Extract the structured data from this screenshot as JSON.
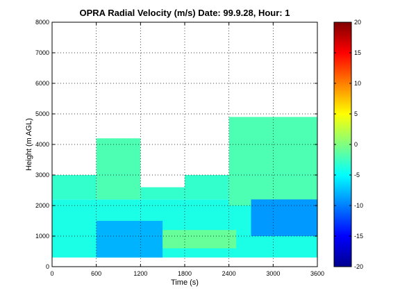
{
  "chart_data": {
    "type": "heatmap",
    "title": "OPRA Radial Velocity (m/s)  Date: 99.9.28, Hour: 1",
    "xlabel": "Time (s)",
    "ylabel": "Height (m AGL)",
    "xlim": [
      0,
      3600
    ],
    "ylim": [
      0,
      8000
    ],
    "xticks": [
      "0",
      "600",
      "1200",
      "1800",
      "2400",
      "3000",
      "3600"
    ],
    "yticks": [
      "0",
      "1000",
      "2000",
      "3000",
      "4000",
      "5000",
      "6000",
      "7000",
      "8000"
    ],
    "grid": true,
    "colorbar": {
      "range": [
        -20,
        20
      ],
      "ticks": [
        "-20",
        "-15",
        "-10",
        "-5",
        "0",
        "5",
        "10",
        "15",
        "20"
      ],
      "colormap": "jet"
    },
    "echo_region_note_values_m_s": "mostly -10 to 0",
    "regions": [
      {
        "t": [
          0,
          3600
        ],
        "h": [
          300,
          2200
        ],
        "v": -4
      },
      {
        "t": [
          0,
          600
        ],
        "h": [
          2200,
          3000
        ],
        "v": -3
      },
      {
        "t": [
          600,
          1200
        ],
        "h": [
          2200,
          4200
        ],
        "v": -2
      },
      {
        "t": [
          1200,
          1800
        ],
        "h": [
          2200,
          2600
        ],
        "v": -3
      },
      {
        "t": [
          1800,
          2400
        ],
        "h": [
          2200,
          3000
        ],
        "v": -3
      },
      {
        "t": [
          2400,
          3600
        ],
        "h": [
          2000,
          4900
        ],
        "v": -2
      },
      {
        "t": [
          600,
          1500
        ],
        "h": [
          300,
          1500
        ],
        "v": -8
      },
      {
        "t": [
          2700,
          3600
        ],
        "h": [
          1000,
          2200
        ],
        "v": -9
      },
      {
        "t": [
          1500,
          2500
        ],
        "h": [
          600,
          1200
        ],
        "v": -1
      }
    ]
  }
}
